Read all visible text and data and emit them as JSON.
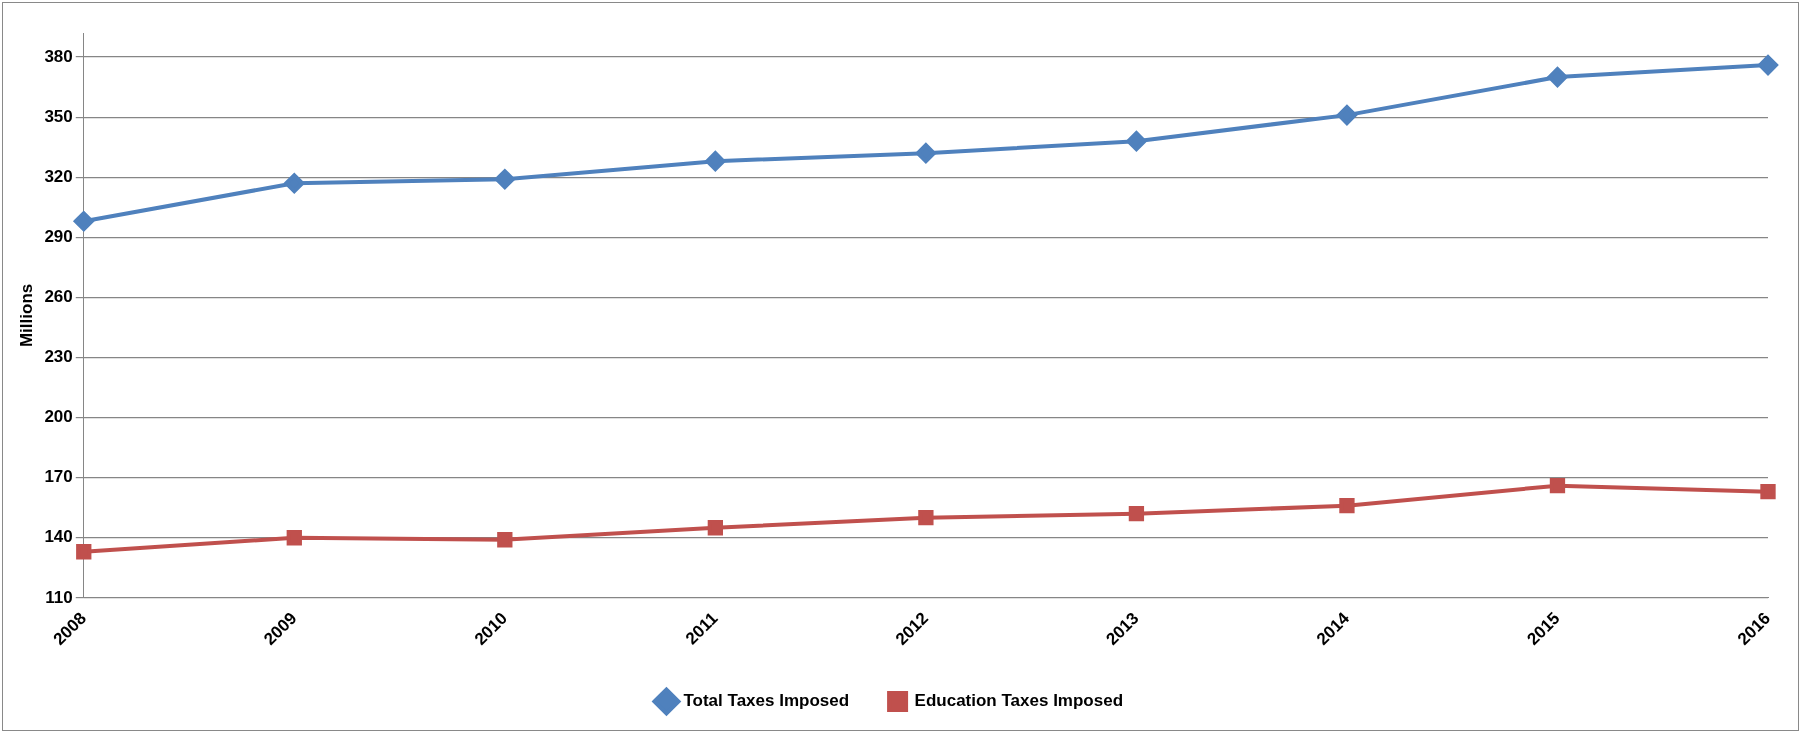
{
  "chart_data": {
    "type": "line",
    "ylabel": "Millions",
    "categories": [
      "2008",
      "2009",
      "2010",
      "2011",
      "2012",
      "2013",
      "2014",
      "2015",
      "2016"
    ],
    "series": [
      {
        "name": "Total Taxes Imposed",
        "color": "#4f81bd",
        "marker": "diamond",
        "values": [
          298,
          317,
          319,
          328,
          332,
          338,
          351,
          370,
          376
        ]
      },
      {
        "name": "Education Taxes Imposed",
        "color": "#c0504d",
        "marker": "square",
        "values": [
          133,
          140,
          139,
          145,
          150,
          152,
          156,
          166,
          163
        ]
      }
    ],
    "ylim": [
      110,
      392
    ],
    "yticks": [
      110,
      140,
      170,
      200,
      230,
      260,
      290,
      320,
      350,
      380
    ],
    "grid": "y",
    "legend": "bottom"
  }
}
